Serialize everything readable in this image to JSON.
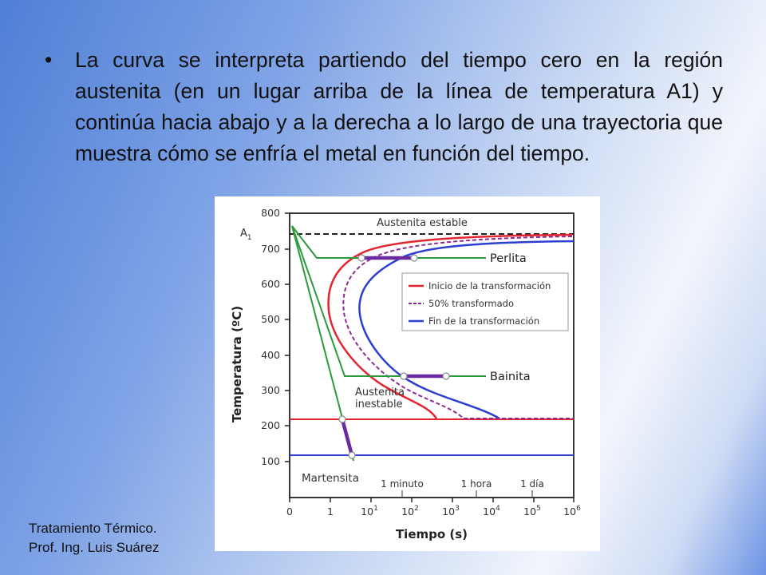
{
  "slide": {
    "bullet_char": "•",
    "bullet_text": "La curva se interpreta partiendo del tiempo cero en la región austenita (en un lugar arriba de la línea de temperatura A1) y continúa hacia abajo y a la derecha a lo largo de una trayectoria que muestra cómo se enfría el metal en función del tiempo.",
    "credit_line1": "Tratamiento Térmico.",
    "credit_line2": "Prof. Ing. Luis Suárez"
  },
  "diagram": {
    "ylabel": "Temperatura (ºC)",
    "xlabel": "Tiempo (s)",
    "y_ticks": [
      "800",
      "700",
      "600",
      "500",
      "400",
      "300",
      "200",
      "100"
    ],
    "x_ticks": {
      "t0": "0",
      "t1": "1",
      "t2_base": "10",
      "t2_exp": "1",
      "t3_base": "10",
      "t3_exp": "2",
      "t4_base": "10",
      "t4_exp": "3",
      "t5_base": "10",
      "t5_exp": "4",
      "t6_base": "10",
      "t6_exp": "5",
      "t7_base": "10",
      "t7_exp": "6"
    },
    "a1_label": "A",
    "a1_sub": "1",
    "region_austenita_estable": "Austenita estable",
    "region_perlita": "Perlita",
    "region_bainita": "Bainita",
    "region_austenita_inestable_1": "Austenita",
    "region_austenita_inestable_2": "inestable",
    "region_martensita": "Martensita",
    "time_minuto": "1 minuto",
    "time_hora": "1 hora",
    "time_dia": "1 día",
    "legend": {
      "inicio": "Inicio de la transformación",
      "medio": "50% transformado",
      "fin": "Fin de la transformación"
    },
    "colors": {
      "red": "#e3262f",
      "purple": "#8e2a95",
      "blue": "#2d3fd1",
      "green": "#2a9a3c",
      "black": "#222222"
    }
  }
}
